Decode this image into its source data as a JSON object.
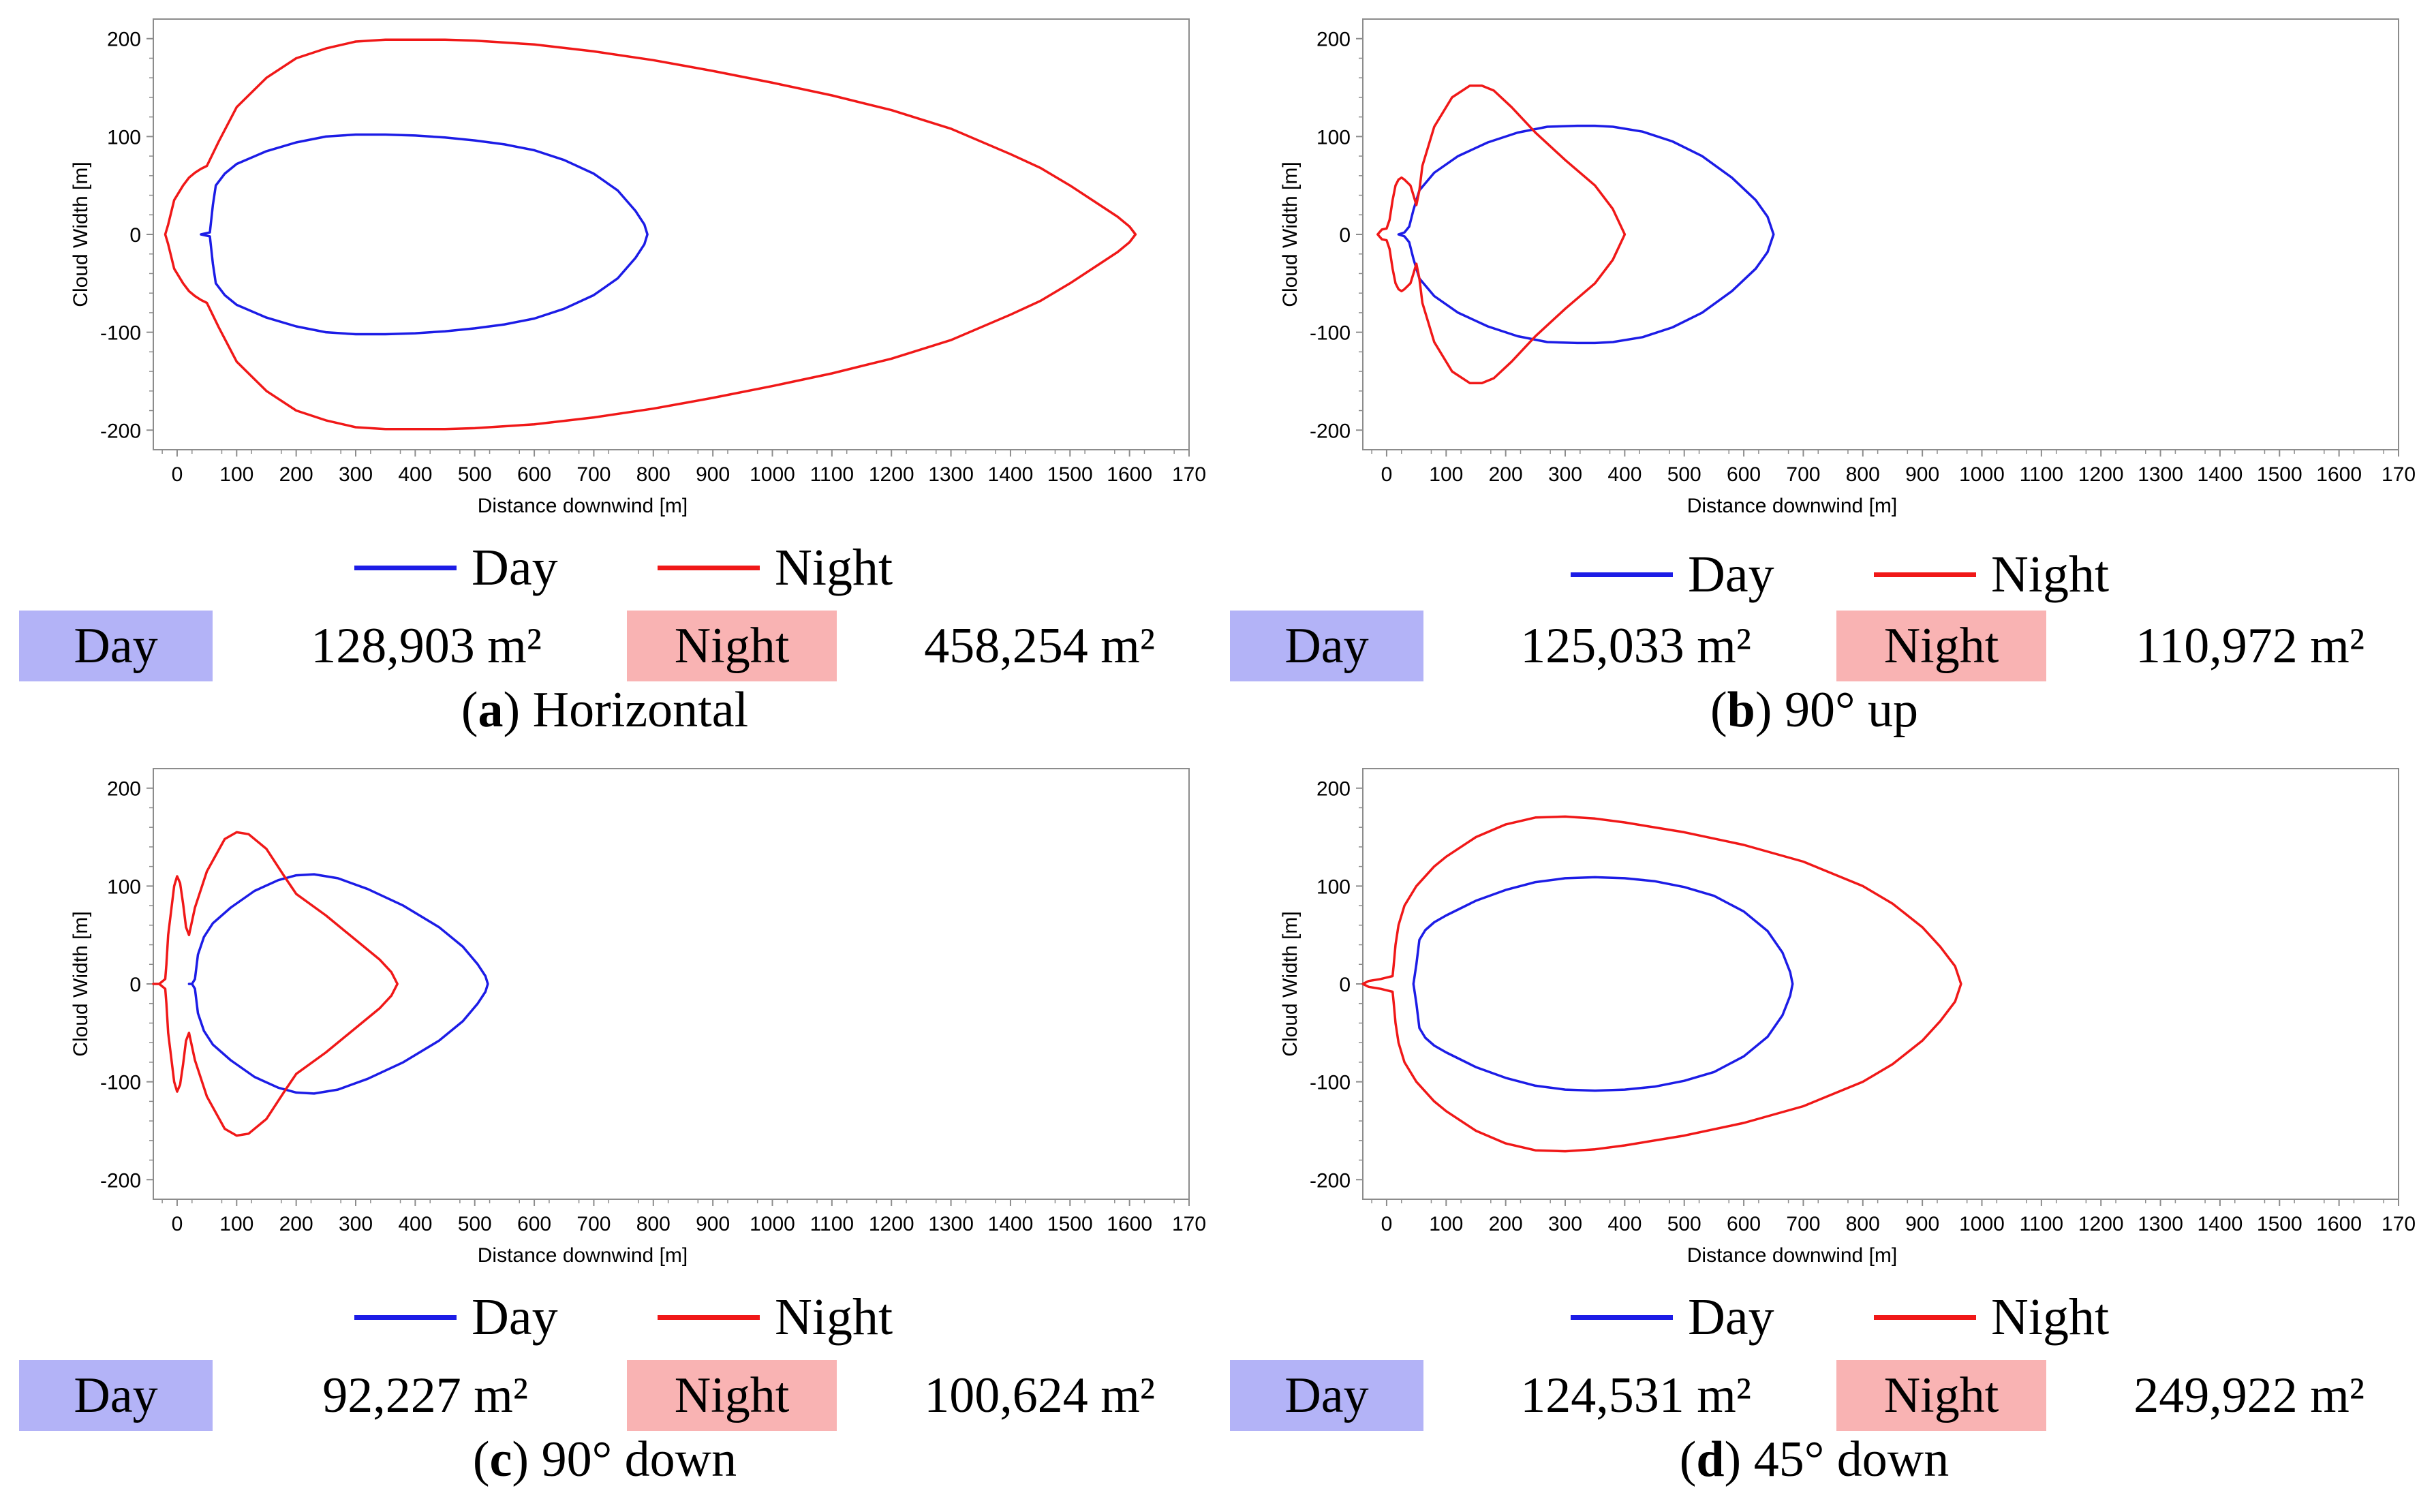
{
  "colors": {
    "day": "#1c1ce6",
    "night": "#f01818",
    "day_box": "#b3b3f7",
    "night_box": "#f9b3b3",
    "frame": "#8c8c8c"
  },
  "legend": {
    "day": "Day",
    "night": "Night"
  },
  "area_labels": {
    "day": "Day",
    "night": "Night"
  },
  "chart_data": [
    {
      "type": "line",
      "panel_letter": "a",
      "caption": "Horizontal",
      "xlabel": "Distance downwind [m]",
      "ylabel": "Cloud Width [m]",
      "xlim": [
        -40,
        1700
      ],
      "ylim": [
        -220,
        220
      ],
      "xticks": [
        "0",
        "100",
        "200",
        "300",
        "400",
        "500",
        "600",
        "700",
        "800",
        "900",
        "1000",
        "1100",
        "1200",
        "1300",
        "1400",
        "1500",
        "1600",
        "170"
      ],
      "yticks": [
        "200",
        "100",
        "0",
        "-100",
        "-200"
      ],
      "areas": {
        "day": "128,903 m²",
        "night": "458,254 m²"
      },
      "series": [
        {
          "name": "Day",
          "x": [
            40,
            55,
            60,
            65,
            80,
            100,
            150,
            200,
            250,
            300,
            350,
            400,
            450,
            500,
            550,
            600,
            650,
            700,
            740,
            770,
            785,
            790
          ],
          "y": [
            0,
            2,
            30,
            50,
            62,
            72,
            85,
            94,
            100,
            102,
            102,
            101,
            99,
            96,
            92,
            86,
            76,
            62,
            45,
            24,
            10,
            0
          ]
        },
        {
          "name": "Night",
          "x": [
            -20,
            -15,
            -5,
            10,
            20,
            30,
            40,
            50,
            70,
            100,
            150,
            200,
            250,
            300,
            350,
            400,
            450,
            500,
            600,
            700,
            800,
            900,
            1000,
            1100,
            1200,
            1300,
            1400,
            1450,
            1500,
            1550,
            1580,
            1600,
            1610
          ],
          "y": [
            0,
            10,
            35,
            50,
            58,
            63,
            67,
            70,
            95,
            130,
            160,
            180,
            190,
            197,
            199,
            199,
            199,
            198,
            194,
            187,
            178,
            167,
            155,
            142,
            127,
            108,
            82,
            68,
            50,
            30,
            18,
            8,
            0
          ]
        }
      ]
    },
    {
      "type": "line",
      "panel_letter": "b",
      "caption": "90° up",
      "xlabel": "Distance downwind [m]",
      "ylabel": "Cloud Width [m]",
      "xlim": [
        -40,
        1700
      ],
      "ylim": [
        -220,
        220
      ],
      "xticks": [
        "0",
        "100",
        "200",
        "300",
        "400",
        "500",
        "600",
        "700",
        "800",
        "900",
        "1000",
        "1100",
        "1200",
        "1300",
        "1400",
        "1500",
        "1600",
        "170"
      ],
      "yticks": [
        "200",
        "100",
        "0",
        "-100",
        "-200"
      ],
      "areas": {
        "day": "125,033 m²",
        "night": "110,972 m²"
      },
      "series": [
        {
          "name": "Day",
          "x": [
            20,
            30,
            38,
            45,
            55,
            80,
            120,
            170,
            220,
            270,
            320,
            350,
            380,
            430,
            480,
            530,
            580,
            620,
            640,
            650
          ],
          "y": [
            0,
            2,
            8,
            25,
            45,
            63,
            80,
            94,
            104,
            110,
            111,
            111,
            110,
            105,
            95,
            80,
            58,
            35,
            18,
            0
          ]
        },
        {
          "name": "Night",
          "x": [
            -15,
            -8,
            0,
            5,
            10,
            15,
            20,
            25,
            30,
            40,
            45,
            50,
            55,
            60,
            80,
            110,
            140,
            160,
            180,
            210,
            250,
            300,
            350,
            380,
            400
          ],
          "y": [
            0,
            5,
            6,
            15,
            35,
            50,
            56,
            58,
            56,
            50,
            40,
            30,
            45,
            70,
            110,
            140,
            152,
            152,
            147,
            130,
            104,
            76,
            50,
            26,
            0
          ]
        }
      ]
    },
    {
      "type": "line",
      "panel_letter": "c",
      "caption": "90° down",
      "xlabel": "Distance downwind [m]",
      "ylabel": "Cloud Width [m]",
      "xlim": [
        -40,
        1700
      ],
      "ylim": [
        -220,
        220
      ],
      "xticks": [
        "0",
        "100",
        "200",
        "300",
        "400",
        "500",
        "600",
        "700",
        "800",
        "900",
        "1000",
        "1100",
        "1200",
        "1300",
        "1400",
        "1500",
        "1600",
        "170"
      ],
      "yticks": [
        "200",
        "100",
        "0",
        "-100",
        "-200"
      ],
      "areas": {
        "day": "92,227 m²",
        "night": "100,624 m²"
      },
      "series": [
        {
          "name": "Day",
          "x": [
            20,
            25,
            30,
            35,
            45,
            60,
            90,
            130,
            170,
            200,
            230,
            270,
            320,
            380,
            440,
            480,
            505,
            518,
            522
          ],
          "y": [
            0,
            0,
            5,
            30,
            48,
            62,
            78,
            95,
            106,
            111,
            112,
            108,
            97,
            80,
            58,
            38,
            20,
            8,
            0
          ]
        },
        {
          "name": "Night",
          "x": [
            -40,
            -30,
            -20,
            -18,
            -15,
            -10,
            -5,
            0,
            5,
            10,
            15,
            20,
            30,
            50,
            80,
            100,
            120,
            150,
            180,
            200,
            250,
            300,
            340,
            360,
            370
          ],
          "y": [
            0,
            0,
            5,
            20,
            50,
            75,
            100,
            110,
            103,
            82,
            58,
            50,
            78,
            115,
            148,
            155,
            153,
            138,
            110,
            92,
            70,
            45,
            25,
            12,
            0
          ]
        }
      ]
    },
    {
      "type": "line",
      "panel_letter": "d",
      "caption": "45° down",
      "xlabel": "Distance downwind [m]",
      "ylabel": "Cloud Width [m]",
      "xlim": [
        -40,
        1700
      ],
      "ylim": [
        -220,
        220
      ],
      "xticks": [
        "0",
        "100",
        "200",
        "300",
        "400",
        "500",
        "600",
        "700",
        "800",
        "900",
        "1000",
        "1100",
        "1200",
        "1300",
        "1400",
        "1500",
        "1600",
        "170"
      ],
      "yticks": [
        "200",
        "100",
        "0",
        "-100",
        "-200"
      ],
      "areas": {
        "day": "124,531 m²",
        "night": "249,922 m²"
      },
      "series": [
        {
          "name": "Day",
          "x": [
            45,
            50,
            55,
            65,
            80,
            100,
            150,
            200,
            250,
            300,
            350,
            400,
            450,
            500,
            550,
            600,
            640,
            665,
            678,
            682
          ],
          "y": [
            0,
            20,
            45,
            55,
            63,
            70,
            85,
            96,
            104,
            108,
            109,
            108,
            105,
            99,
            90,
            74,
            54,
            32,
            12,
            0
          ]
        },
        {
          "name": "Night",
          "x": [
            -40,
            -30,
            -10,
            10,
            12,
            15,
            20,
            30,
            50,
            80,
            100,
            150,
            200,
            250,
            300,
            350,
            400,
            500,
            600,
            700,
            800,
            850,
            900,
            930,
            955,
            965
          ],
          "y": [
            0,
            3,
            5,
            8,
            20,
            40,
            60,
            80,
            100,
            120,
            130,
            150,
            163,
            170,
            171,
            169,
            165,
            155,
            142,
            125,
            100,
            82,
            58,
            38,
            18,
            0
          ]
        }
      ]
    }
  ]
}
